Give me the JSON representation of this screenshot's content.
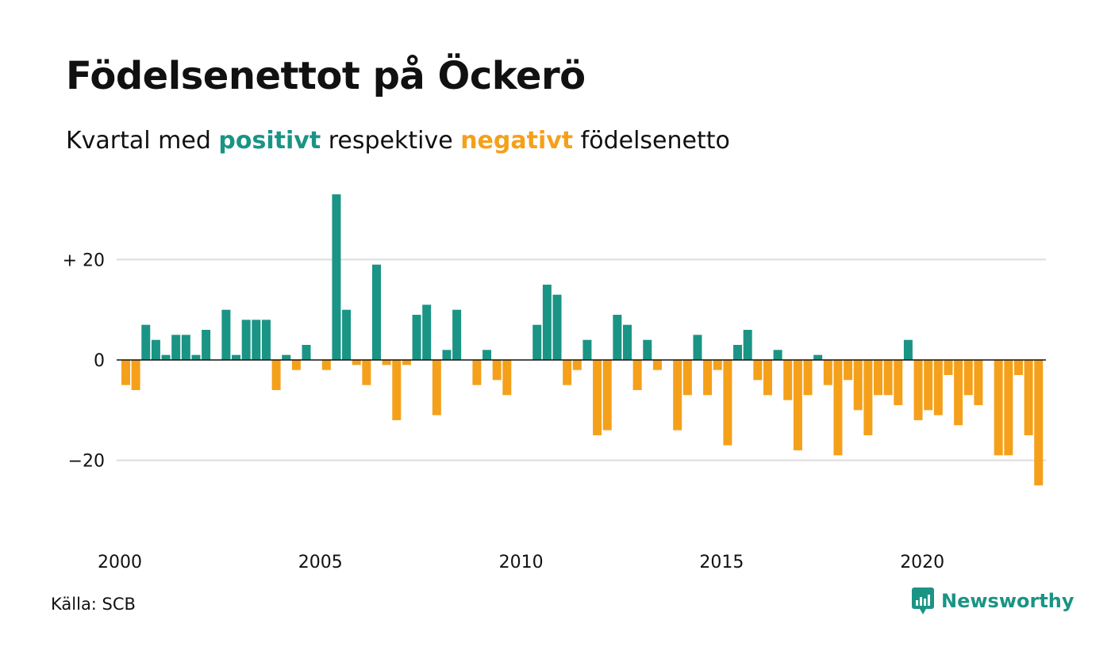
{
  "title": "Födelsenettot på Öckerö",
  "subtitle": {
    "prefix": "Kvartal med ",
    "positive_word": "positivt",
    "middle": " respektive ",
    "negative_word": "negativt",
    "suffix": " födelsenetto"
  },
  "source": "Källa: SCB",
  "brand": "Newsworthy",
  "colors": {
    "positive": "#1a9485",
    "negative": "#f5a01a",
    "grid": "#dddddd",
    "text": "#111111"
  },
  "chart_data": {
    "type": "bar",
    "x_start": "2000 Q1",
    "values": [
      -5,
      -6,
      7,
      4,
      1,
      5,
      5,
      1,
      6,
      0,
      10,
      1,
      8,
      8,
      8,
      -6,
      1,
      -2,
      3,
      0,
      -2,
      33,
      10,
      -1,
      -5,
      19,
      -1,
      -12,
      -1,
      9,
      11,
      -11,
      2,
      10,
      0,
      -5,
      2,
      -4,
      -7,
      0,
      0,
      7,
      15,
      13,
      -5,
      -2,
      4,
      -15,
      -14,
      9,
      7,
      -6,
      4,
      -2,
      0,
      -14,
      -7,
      5,
      -7,
      -2,
      -17,
      3,
      6,
      -4,
      -7,
      2,
      -8,
      -18,
      -7,
      1,
      -5,
      -19,
      -4,
      -10,
      -15,
      -7,
      -7,
      -9,
      4,
      -12,
      -10,
      -11,
      -3,
      -13,
      -7,
      -9,
      0,
      -19,
      -19,
      -3,
      -15,
      -25
    ],
    "ylim": [
      -30,
      35
    ],
    "yticks": [
      {
        "value": 20,
        "label": "+ 20"
      },
      {
        "value": 0,
        "label": "0"
      },
      {
        "value": -20,
        "label": "−20"
      }
    ],
    "xticks": [
      {
        "year": 2000,
        "label": "2000"
      },
      {
        "year": 2005,
        "label": "2005"
      },
      {
        "year": 2010,
        "label": "2010"
      },
      {
        "year": 2015,
        "label": "2015"
      },
      {
        "year": 2020,
        "label": "2020"
      }
    ],
    "grid": true
  }
}
